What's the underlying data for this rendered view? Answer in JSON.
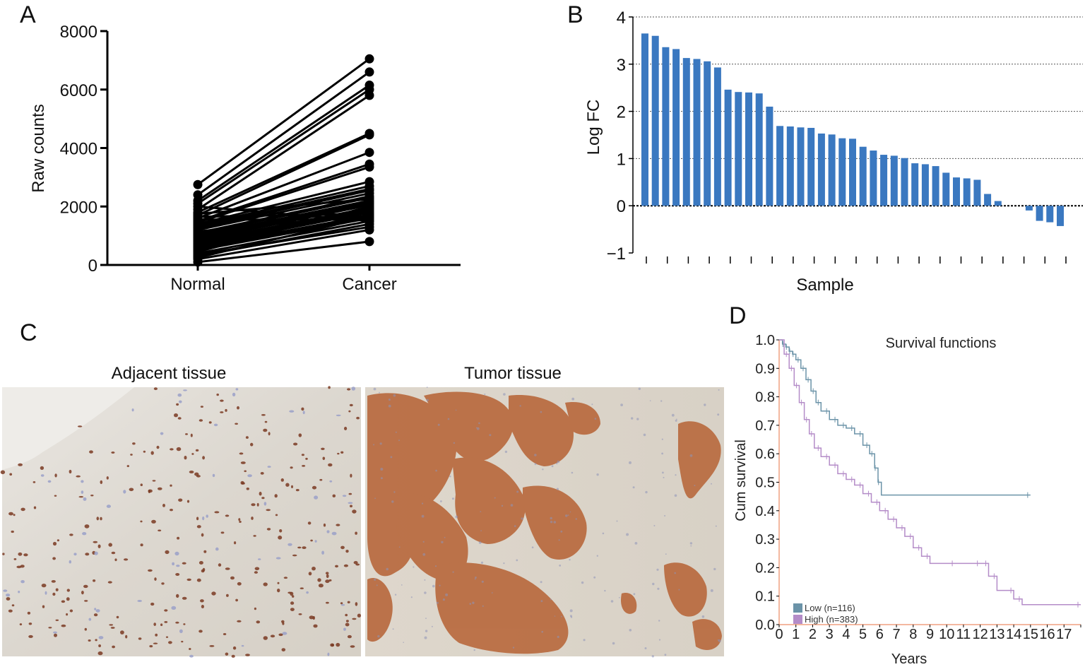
{
  "panel_labels": {
    "a": "A",
    "b": "B",
    "c": "C",
    "d": "D"
  },
  "colors": {
    "bar": "#3a78c0",
    "line": "#000000",
    "low": "#6b93a8",
    "high": "#b48cc8",
    "km_axis": "#f0a080",
    "stain_brown": "#b5653a",
    "tissue_bg": "#ddd8cf"
  },
  "panel_c": {
    "left_title": "Adjacent tissue",
    "right_title": "Tumor tissue",
    "left_image_icon": "ihc-adjacent-tissue-photo",
    "right_image_icon": "ihc-tumor-tissue-photo"
  },
  "chart_data": [
    {
      "type": "line",
      "categories": [
        "Normal",
        "Cancer"
      ],
      "ylabel": "Raw counts",
      "xlabel": "",
      "ylim": [
        0,
        8000
      ],
      "yticks": [
        "0",
        "2000",
        "4000",
        "6000",
        "8000"
      ],
      "pairs": [
        [
          2750,
          7050
        ],
        [
          2400,
          6600
        ],
        [
          2200,
          6150
        ],
        [
          2100,
          6000
        ],
        [
          1900,
          5800
        ],
        [
          1800,
          4500
        ],
        [
          1700,
          4450
        ],
        [
          1600,
          3850
        ],
        [
          1500,
          3450
        ],
        [
          1450,
          3350
        ],
        [
          1400,
          2850
        ],
        [
          1350,
          2700
        ],
        [
          1300,
          2600
        ],
        [
          1250,
          2550
        ],
        [
          1200,
          2450
        ],
        [
          1100,
          2350
        ],
        [
          1050,
          2300
        ],
        [
          1000,
          2200
        ],
        [
          950,
          2150
        ],
        [
          900,
          2100
        ],
        [
          850,
          2050
        ],
        [
          800,
          1950
        ],
        [
          750,
          1900
        ],
        [
          700,
          1850
        ],
        [
          650,
          1800
        ],
        [
          600,
          1700
        ],
        [
          550,
          1650
        ],
        [
          500,
          1600
        ],
        [
          400,
          1500
        ],
        [
          300,
          1400
        ],
        [
          200,
          1200
        ],
        [
          100,
          800
        ],
        [
          1550,
          1550
        ],
        [
          1650,
          1750
        ],
        [
          2000,
          1500
        ],
        [
          450,
          2000
        ],
        [
          350,
          1300
        ],
        [
          250,
          1650
        ],
        [
          1750,
          2250
        ],
        [
          1150,
          1700
        ]
      ]
    },
    {
      "type": "bar",
      "ylabel": "Log FC",
      "xlabel": "Sample",
      "ylim": [
        -1,
        4
      ],
      "yticks": [
        "−1",
        "0",
        "1",
        "2",
        "3",
        "4"
      ],
      "grid": "dotted horizontal at 1, 2, 3, 4",
      "values": [
        3.65,
        3.6,
        3.36,
        3.32,
        3.13,
        3.11,
        3.06,
        2.93,
        2.46,
        2.41,
        2.4,
        2.38,
        2.1,
        1.69,
        1.68,
        1.66,
        1.65,
        1.53,
        1.51,
        1.43,
        1.42,
        1.25,
        1.17,
        1.08,
        1.06,
        1.01,
        0.9,
        0.88,
        0.84,
        0.7,
        0.6,
        0.58,
        0.55,
        0.25,
        0.1,
        0,
        0,
        -0.1,
        -0.32,
        -0.35,
        -0.43
      ]
    },
    {
      "type": "line",
      "title": "Survival functions",
      "xlabel": "Years",
      "ylabel": "Cum survival",
      "xlim": [
        0,
        18
      ],
      "ylim": [
        0,
        1
      ],
      "xticks": [
        "0",
        "1",
        "2",
        "3",
        "4",
        "5",
        "6",
        "7",
        "8",
        "9",
        "10",
        "11",
        "12",
        "13",
        "14",
        "15",
        "16",
        "17"
      ],
      "yticks": [
        "0.0",
        "0.1",
        "0.2",
        "0.3",
        "0.4",
        "0.5",
        "0.6",
        "0.7",
        "0.8",
        "0.9",
        "1.0"
      ],
      "legend": "bottom-left",
      "series": [
        {
          "name": "Low (n=116)",
          "x": [
            0,
            0.2,
            0.4,
            0.6,
            0.8,
            1.0,
            1.3,
            1.6,
            1.9,
            2.2,
            2.5,
            3.0,
            3.5,
            4.0,
            4.5,
            5.0,
            5.4,
            5.7,
            5.9,
            6.1,
            15.0
          ],
          "y": [
            1.0,
            0.985,
            0.975,
            0.96,
            0.95,
            0.93,
            0.9,
            0.86,
            0.82,
            0.78,
            0.75,
            0.72,
            0.7,
            0.69,
            0.67,
            0.63,
            0.6,
            0.55,
            0.5,
            0.455,
            0.455
          ]
        },
        {
          "name": "High (n=383)",
          "x": [
            0,
            0.3,
            0.6,
            0.9,
            1.2,
            1.5,
            1.8,
            2.1,
            2.5,
            3.0,
            3.5,
            4.0,
            4.5,
            5.0,
            5.5,
            6.0,
            6.5,
            7.0,
            7.5,
            8.0,
            8.5,
            9.0,
            10.5,
            12.0,
            12.5,
            13.0,
            14.0,
            14.5,
            18.0
          ],
          "y": [
            1.0,
            0.95,
            0.9,
            0.84,
            0.78,
            0.72,
            0.67,
            0.62,
            0.59,
            0.56,
            0.53,
            0.51,
            0.49,
            0.46,
            0.43,
            0.4,
            0.37,
            0.34,
            0.31,
            0.27,
            0.24,
            0.215,
            0.215,
            0.215,
            0.17,
            0.12,
            0.09,
            0.07,
            0.07
          ]
        }
      ]
    }
  ]
}
